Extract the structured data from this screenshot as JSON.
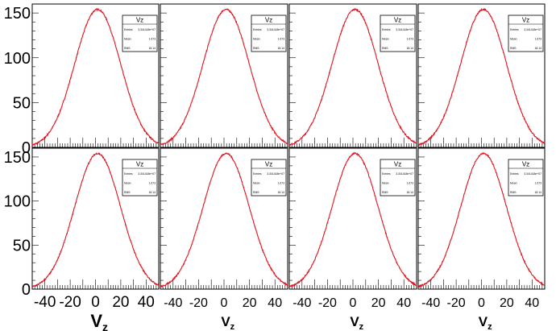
{
  "chart_data": {
    "type": "line",
    "layout": {
      "rows": 2,
      "cols": 4
    },
    "xlim": [
      -50,
      50
    ],
    "ylim": [
      0,
      160
    ],
    "x_ticks": [
      -40,
      -20,
      0,
      20,
      40
    ],
    "y_ticks": [
      0,
      50,
      100,
      150
    ],
    "xlabel_main": "V",
    "xlabel_sub": "z",
    "line_color": "#e0141e",
    "series_model": {
      "mean": 1.673,
      "rms": 18.14,
      "peak": 154
    },
    "stats_box": {
      "title": "Vz",
      "rows": [
        {
          "label": "Entries",
          "value": "3.341418e+07"
        },
        {
          "label": "Mean",
          "value": "1.673"
        },
        {
          "label": "RMS",
          "value": "18.14"
        }
      ]
    },
    "panels": [
      {
        "row": 0,
        "col": 0,
        "show_x_axis_labels": false,
        "show_y_axis_labels": true,
        "xlabel_size": "small"
      },
      {
        "row": 0,
        "col": 1,
        "show_x_axis_labels": false,
        "show_y_axis_labels": false,
        "xlabel_size": "small"
      },
      {
        "row": 0,
        "col": 2,
        "show_x_axis_labels": false,
        "show_y_axis_labels": false,
        "xlabel_size": "small"
      },
      {
        "row": 0,
        "col": 3,
        "show_x_axis_labels": false,
        "show_y_axis_labels": false,
        "xlabel_size": "small"
      },
      {
        "row": 1,
        "col": 0,
        "show_x_axis_labels": true,
        "show_y_axis_labels": true,
        "xlabel_size": "large"
      },
      {
        "row": 1,
        "col": 1,
        "show_x_axis_labels": true,
        "show_y_axis_labels": false,
        "xlabel_size": "small"
      },
      {
        "row": 1,
        "col": 2,
        "show_x_axis_labels": true,
        "show_y_axis_labels": false,
        "xlabel_size": "small"
      },
      {
        "row": 1,
        "col": 3,
        "show_x_axis_labels": true,
        "show_y_axis_labels": false,
        "xlabel_size": "small"
      }
    ]
  }
}
